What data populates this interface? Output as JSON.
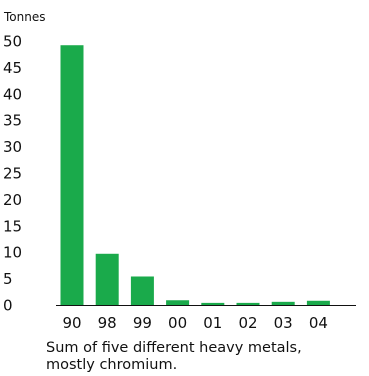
{
  "chart_data": {
    "type": "bar",
    "title": "",
    "ylabel": "Tonnes",
    "xlabel": "",
    "categories": [
      "90",
      "98",
      "99",
      "00",
      "01",
      "02",
      "03",
      "04"
    ],
    "values": [
      49.2,
      9.7,
      5.4,
      0.9,
      0.4,
      0.4,
      0.6,
      0.8
    ],
    "ylim": [
      0,
      50
    ],
    "yticks": [
      0,
      5,
      10,
      15,
      20,
      25,
      30,
      35,
      40,
      45,
      50
    ],
    "grid": false,
    "bar_color": "#1aaa4b",
    "caption": "Sum of five different heavy metals, mostly chromium."
  }
}
